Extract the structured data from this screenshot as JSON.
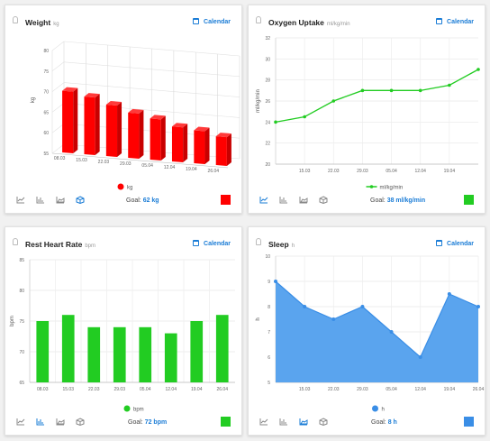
{
  "panels": [
    {
      "id": "weight",
      "title": "Weight",
      "unit": "kg",
      "calendar_label": "Calendar",
      "goal_label": "Goal:",
      "goal_value": "62 kg",
      "color": "#ff0000",
      "active_chart_type": "3d-bar",
      "chart_data": {
        "type": "bar",
        "categories": [
          "08.03",
          "15.03",
          "22.03",
          "29.03",
          "05.04",
          "12.04",
          "19.04",
          "26.04"
        ],
        "series": [
          {
            "name": "kg",
            "values": [
              70,
              69,
              67.5,
              66,
              65,
              63.5,
              63,
              62
            ]
          }
        ],
        "ylabel": "kg",
        "yticks": [
          55,
          60,
          65,
          70,
          75,
          80
        ],
        "ylim": [
          55,
          80
        ],
        "grid": true,
        "legend": "bottom"
      }
    },
    {
      "id": "oxygen-uptake",
      "title": "Oxygen Uptake",
      "unit": "ml/kg/min",
      "calendar_label": "Calendar",
      "goal_label": "Goal:",
      "goal_value": "38 ml/kg/min",
      "color": "#22cc22",
      "active_chart_type": "line",
      "chart_data": {
        "type": "line",
        "x": [
          "08.03",
          "15.03",
          "22.03",
          "29.03",
          "05.04",
          "12.04",
          "19.04",
          "26.04"
        ],
        "xticks": [
          "15.03",
          "22.03",
          "29.03",
          "05.04",
          "12.04",
          "19.04"
        ],
        "series": [
          {
            "name": "ml/kg/min",
            "values": [
              24,
              24.5,
              26,
              27,
              27,
              27,
              27.5,
              29
            ]
          }
        ],
        "ylabel": "ml/kg/min",
        "yticks": [
          20,
          22,
          24,
          26,
          28,
          30,
          32
        ],
        "ylim": [
          20,
          32
        ],
        "grid": true,
        "legend": "bottom"
      }
    },
    {
      "id": "rest-heart-rate",
      "title": "Rest Heart Rate",
      "unit": "bpm",
      "calendar_label": "Calendar",
      "goal_label": "Goal:",
      "goal_value": "72 bpm",
      "color": "#22cc22",
      "active_chart_type": "bar",
      "chart_data": {
        "type": "bar",
        "categories": [
          "08.03",
          "15.03",
          "22.03",
          "29.03",
          "05.04",
          "12.04",
          "19.04",
          "26.04"
        ],
        "series": [
          {
            "name": "bpm",
            "values": [
              75,
              76,
              74,
              74,
              74,
              73,
              75,
              76
            ]
          }
        ],
        "ylabel": "bpm",
        "yticks": [
          65,
          70,
          75,
          80,
          85
        ],
        "ylim": [
          65,
          85
        ],
        "grid": true,
        "legend": "bottom"
      }
    },
    {
      "id": "sleep",
      "title": "Sleep",
      "unit": "h",
      "calendar_label": "Calendar",
      "goal_label": "Goal:",
      "goal_value": "8 h",
      "color": "#3a8ee6",
      "active_chart_type": "area",
      "chart_data": {
        "type": "area",
        "x": [
          "08.03",
          "15.03",
          "22.03",
          "29.03",
          "05.04",
          "12.04",
          "19.04",
          "26.04"
        ],
        "xticks": [
          "15.03",
          "22.03",
          "29.03",
          "05.04",
          "12.04",
          "19.04",
          "26.04"
        ],
        "series": [
          {
            "name": "h",
            "values": [
              9,
              8,
              7.5,
              8,
              7,
              6,
              8.5,
              8
            ]
          }
        ],
        "ylabel": "h",
        "yticks": [
          5,
          6,
          7,
          8,
          9,
          10
        ],
        "ylim": [
          5,
          10
        ],
        "grid": true,
        "legend": "bottom"
      }
    }
  ]
}
